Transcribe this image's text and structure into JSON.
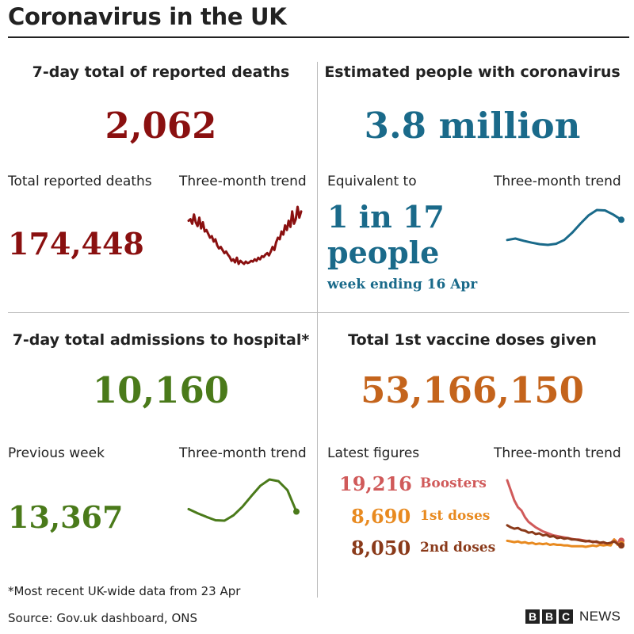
{
  "page_title": "Coronavirus in the UK",
  "colors": {
    "deaths": "#8a1010",
    "infections": "#1a6a8a",
    "hospital": "#4a7a1a",
    "vaccine": "#c4641c",
    "boosters": "#d05a5a",
    "first_doses": "#e88a20",
    "second_doses": "#8a3a1a"
  },
  "deaths": {
    "title": "7-day total of reported deaths",
    "value": "2,062",
    "total_label": "Total reported deaths",
    "total_value": "174,448",
    "trend_label": "Three-month trend"
  },
  "infections": {
    "title": "Estimated people with coronavirus",
    "value": "3.8 million",
    "equiv_label": "Equivalent to",
    "ratio_line1": "1 in 17",
    "ratio_line2": "people",
    "week_note": "week ending 16 Apr",
    "trend_label": "Three-month trend"
  },
  "hospital": {
    "title": "7-day total admissions to hospital*",
    "value": "10,160",
    "prev_label": "Previous week",
    "prev_value": "13,367",
    "trend_label": "Three-month trend"
  },
  "vaccines": {
    "title": "Total 1st vaccine doses given",
    "value": "53,166,150",
    "latest_label": "Latest figures",
    "boosters_value": "19,216",
    "boosters_label": "Boosters",
    "first_value": "8,690",
    "first_label": "1st doses",
    "second_value": "8,050",
    "second_label": "2nd doses",
    "trend_label": "Three-month trend"
  },
  "footnote": "*Most recent UK-wide data from 23 Apr",
  "source": "Source: Gov.uk dashboard, ONS",
  "brand": {
    "b1": "B",
    "b2": "B",
    "b3": "C",
    "news": "NEWS"
  },
  "chart_data": [
    {
      "type": "line",
      "name": "deaths-trend",
      "values": [
        62,
        64,
        58,
        70,
        60,
        55,
        66,
        52,
        60,
        48,
        50,
        45,
        40,
        42,
        35,
        38,
        30,
        26,
        28,
        24,
        20,
        22,
        18,
        15,
        10,
        12,
        8,
        14,
        6,
        10,
        8,
        6,
        9,
        7,
        8,
        10,
        9,
        12,
        10,
        14,
        12,
        16,
        15,
        18,
        20,
        17,
        22,
        28,
        24,
        34,
        40,
        38,
        48,
        44,
        56,
        50,
        62,
        54,
        74,
        58,
        64,
        80,
        66,
        74
      ]
    },
    {
      "type": "line",
      "name": "infections-trend",
      "values": [
        20,
        24,
        18,
        13,
        9,
        7,
        10,
        20,
        40,
        64,
        86,
        100,
        99,
        88,
        74
      ]
    },
    {
      "type": "line",
      "name": "hospital-trend",
      "values": [
        28,
        18,
        9,
        1,
        0,
        13,
        34,
        60,
        85,
        100,
        96,
        74,
        22
      ]
    },
    {
      "type": "line",
      "name": "vaccine-trend",
      "series": [
        {
          "name": "Boosters",
          "values": [
            100,
            85,
            70,
            60,
            55,
            45,
            38,
            34,
            30,
            27,
            24,
            22,
            20,
            18,
            17,
            16,
            15,
            14,
            13,
            12,
            12,
            11,
            10,
            9,
            9,
            8,
            7,
            7,
            6,
            6,
            12,
            7,
            10
          ]
        },
        {
          "name": "1st doses",
          "values": [
            10,
            9,
            8,
            9,
            7,
            8,
            6,
            7,
            5,
            6,
            5,
            6,
            4,
            5,
            4,
            4,
            3,
            3,
            2,
            2,
            2,
            2,
            1,
            2,
            3,
            2,
            4,
            3,
            4,
            3,
            12,
            4,
            5
          ]
        },
        {
          "name": "2nd doses",
          "values": [
            33,
            30,
            28,
            29,
            26,
            25,
            22,
            23,
            20,
            21,
            18,
            19,
            16,
            17,
            14,
            15,
            13,
            14,
            12,
            12,
            11,
            10,
            9,
            10,
            8,
            9,
            7,
            8,
            6,
            7,
            9,
            5,
            3
          ]
        }
      ]
    }
  ]
}
